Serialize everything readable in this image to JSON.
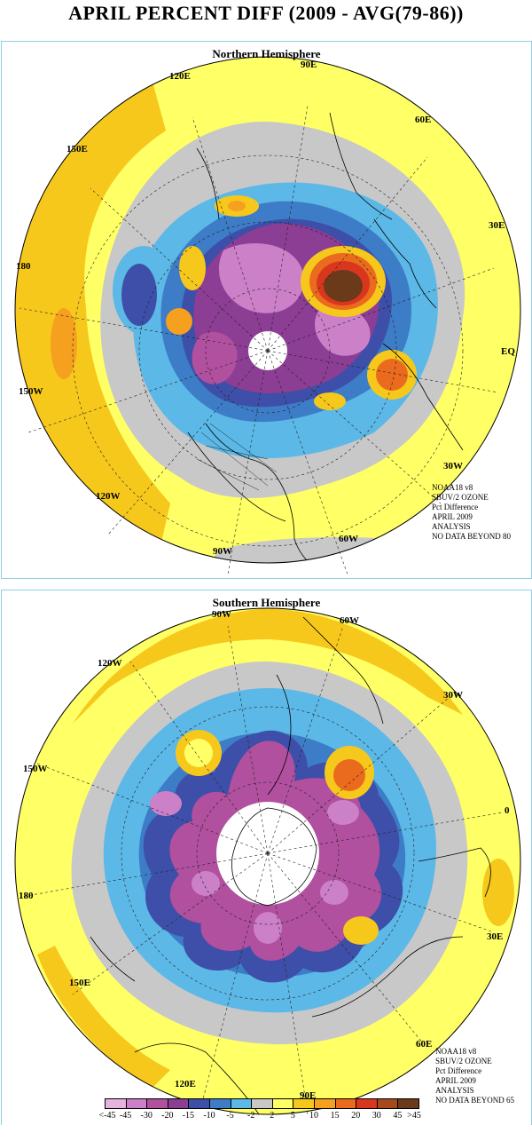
{
  "title": "APRIL PERCENT DIFF (2009 - AVG(79-86))",
  "north": {
    "title": "Northern Hemisphere",
    "lon_labels": [
      "90E",
      "60E",
      "30E",
      "EQ",
      "30W",
      "60W",
      "90W",
      "120W",
      "150W",
      "180",
      "150E",
      "120E"
    ],
    "info": [
      "NOAA18 v8",
      "SBUV/2 OZONE",
      "Pct Difference",
      "APRIL 2009",
      "ANALYSIS",
      "NO DATA BEYOND  80"
    ]
  },
  "south": {
    "title": "Southern Hemisphere",
    "lon_labels": [
      "90W",
      "60W",
      "30W",
      "0",
      "30E",
      "60E",
      "90E",
      "120E",
      "150E",
      "180",
      "150W",
      "120W"
    ],
    "info": [
      "NOAA18 v8",
      "SBUV/2 OZONE",
      "Pct Difference",
      "APRIL 2009",
      "ANALYSIS",
      "NO DATA BEYOND  65"
    ]
  },
  "legend": {
    "colors": [
      "#e6b3df",
      "#cc80c8",
      "#b0509e",
      "#8c3d94",
      "#3d4fa8",
      "#3d7cc6",
      "#5cb8e6",
      "#c8c8c8",
      "#ffff66",
      "#f7c81c",
      "#f5a01e",
      "#ea6a1e",
      "#d9361e",
      "#a64a1e",
      "#6b3a1a"
    ],
    "labels": [
      "<-45",
      "-45",
      "-30",
      "-20",
      "-15",
      "-10",
      "-5",
      "-2",
      "2",
      "5",
      "10",
      "15",
      "20",
      "30",
      "45",
      ">45"
    ]
  }
}
